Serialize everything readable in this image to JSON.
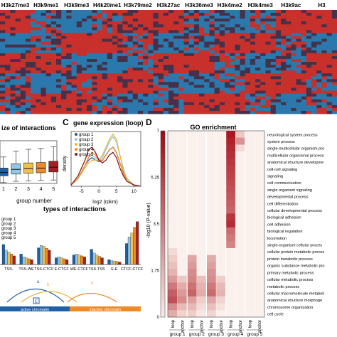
{
  "heatmap": {
    "marks": [
      "H3k27me3",
      "H3k9me1",
      "H3k9me3",
      "H4k20me1",
      "H3k79me2",
      "H3k27ac",
      "H3k36me3",
      "H3k4me2",
      "H3k4me3",
      "H3k9ac",
      "H3"
    ],
    "row_blocks": 5,
    "colors": {
      "low": "#2a7fb8",
      "high": "#d62a28",
      "mid": "#3a3552"
    }
  },
  "panel_b": {
    "title": "ize of interactions",
    "xlabel": "group number",
    "colors": [
      "#1f5fa6",
      "#8ec7e8",
      "#f2c14a",
      "#f08a24",
      "#a81e22"
    ],
    "chart_data": {
      "type": "box",
      "categories": [
        "1",
        "2",
        "3",
        "4",
        "5"
      ],
      "boxes": [
        {
          "q1": 0.18,
          "median": 0.26,
          "q3": 0.36,
          "whisker_low": 0.02,
          "whisker_high": 0.62
        },
        {
          "q1": 0.22,
          "median": 0.33,
          "q3": 0.46,
          "whisker_low": 0.05,
          "whisker_high": 0.76
        },
        {
          "q1": 0.24,
          "median": 0.35,
          "q3": 0.48,
          "whisker_low": 0.06,
          "whisker_high": 0.8
        },
        {
          "q1": 0.25,
          "median": 0.36,
          "q3": 0.49,
          "whisker_low": 0.07,
          "whisker_high": 0.82
        },
        {
          "q1": 0.27,
          "median": 0.38,
          "q3": 0.52,
          "whisker_low": 0.08,
          "whisker_high": 0.86
        }
      ]
    }
  },
  "panel_c": {
    "letter": "C",
    "title": "gene expression (loop)",
    "xlabel": "log2 (rpkm)",
    "ylabel": "density",
    "legend": [
      "group 1",
      "group 2",
      "group 3",
      "group 4",
      "group 5"
    ],
    "colors": [
      "#1f5fa6",
      "#8ec7e8",
      "#e8b63c",
      "#f08a24",
      "#8c1a1a"
    ],
    "chart_data": {
      "type": "line",
      "xticks": [
        "-5",
        "0",
        "5",
        "10"
      ],
      "xlim": [
        -8,
        12
      ],
      "ylim": [
        0,
        0.21
      ],
      "x": [
        -8,
        -6,
        -4,
        -3,
        -2,
        -1,
        0,
        1,
        2,
        3,
        4,
        5,
        6,
        7,
        8,
        10,
        12
      ],
      "series": [
        {
          "name": "group 1",
          "values": [
            0.005,
            0.03,
            0.08,
            0.1,
            0.11,
            0.1,
            0.095,
            0.1,
            0.12,
            0.14,
            0.15,
            0.13,
            0.09,
            0.05,
            0.02,
            0.005,
            0.0
          ]
        },
        {
          "name": "group 2",
          "values": [
            0.005,
            0.03,
            0.08,
            0.11,
            0.12,
            0.11,
            0.1,
            0.11,
            0.14,
            0.17,
            0.19,
            0.17,
            0.12,
            0.07,
            0.03,
            0.005,
            0.0
          ]
        },
        {
          "name": "group 3",
          "values": [
            0.005,
            0.03,
            0.07,
            0.09,
            0.1,
            0.1,
            0.1,
            0.12,
            0.15,
            0.18,
            0.2,
            0.18,
            0.12,
            0.06,
            0.03,
            0.005,
            0.0
          ]
        },
        {
          "name": "group 4",
          "values": [
            0.005,
            0.03,
            0.08,
            0.11,
            0.13,
            0.12,
            0.1,
            0.1,
            0.12,
            0.14,
            0.15,
            0.13,
            0.09,
            0.05,
            0.02,
            0.005,
            0.0
          ]
        },
        {
          "name": "group 5",
          "values": [
            0.005,
            0.04,
            0.1,
            0.14,
            0.15,
            0.13,
            0.1,
            0.09,
            0.1,
            0.12,
            0.13,
            0.11,
            0.07,
            0.04,
            0.02,
            0.005,
            0.0
          ]
        }
      ]
    }
  },
  "panel_e": {
    "title": "types of interactions",
    "legend": [
      "group 1",
      "group 2",
      "group 3",
      "group 4",
      "group 5"
    ],
    "colors": [
      "#1f5fa6",
      "#8ec7e8",
      "#f2c14a",
      "#f08a24",
      "#a81e22"
    ],
    "chart_data": {
      "type": "bar",
      "categories": [
        "TSS-TSS",
        "TSS-WE",
        "TSS-CTCF",
        "E-CTCF",
        "WE-CTCF",
        "TSS-TSS",
        "E-E",
        "CTCF-CTCF"
      ],
      "category_labels": [
        "TSS-",
        "TSS-WE",
        "TSS-CTCF",
        "E-CTCF",
        "WE-CTCF",
        "TSS-TSS",
        "E-E",
        "CTCF-CTCF"
      ],
      "series": [
        {
          "name": "group 1",
          "values": [
            0.42,
            0.22,
            0.35,
            0.14,
            0.2,
            0.32,
            0.1,
            0.44
          ]
        },
        {
          "name": "group 2",
          "values": [
            0.3,
            0.16,
            0.4,
            0.16,
            0.22,
            0.24,
            0.08,
            0.58
          ]
        },
        {
          "name": "group 3",
          "values": [
            0.26,
            0.14,
            0.38,
            0.14,
            0.2,
            0.2,
            0.07,
            0.66
          ]
        },
        {
          "name": "group 4",
          "values": [
            0.22,
            0.12,
            0.34,
            0.12,
            0.18,
            0.17,
            0.06,
            0.78
          ]
        },
        {
          "name": "group 5",
          "values": [
            0.18,
            0.1,
            0.3,
            0.1,
            0.16,
            0.14,
            0.05,
            0.9
          ]
        }
      ],
      "ylim": [
        0,
        1
      ]
    },
    "diagram": {
      "label_a": "a",
      "label_b": "b",
      "label_c": "c",
      "label_e": "E",
      "active_label": "active chromatin",
      "inactive_label": "inactive chromatin",
      "active_color": "#1f5fa6",
      "inactive_color": "#f08a24"
    }
  },
  "panel_d": {
    "letter": "D",
    "title": "GO enrichment",
    "ylabel": "-log10 (P-value)",
    "yticks": [
      "7",
      "5.25",
      "3.5",
      "1.75",
      "0"
    ],
    "columns": [
      "loop",
      "anchor",
      "loop",
      "anchor",
      "loop",
      "anchor",
      "loop",
      "anchor",
      "loop",
      "anchor"
    ],
    "groups": [
      "group 1",
      "group 2",
      "group 3",
      "group 4",
      "group 5"
    ],
    "terms": [
      "neurological system process",
      "system process",
      "single-multicellular organism pro",
      "multicellular organismal process",
      "anatomical structure developme",
      "cell-cell signaling",
      "signaling",
      "cell communication",
      "single organism signaling",
      "developmental process",
      "cell differentiation",
      "cellular developmental process",
      "biological adhesion",
      "cell adhesion",
      "biological regulation",
      "locomotion",
      "single-organism cellular proces",
      "cellular protein metabolic proces",
      "protein metabolic process",
      "organic substance metabolic pro",
      "primary metabolic process",
      "cellular metabolic process",
      "metabolic process",
      "cellular macromolecule metaboli",
      "anatomical structure morphoge",
      "chromosome organization",
      "cell cycle"
    ],
    "chart_data": {
      "type": "heatmap",
      "vmax": 7,
      "rows_top_to_bottom_values": [
        [
          0,
          0,
          0,
          0,
          0,
          0,
          6.5,
          1.2,
          0,
          0
        ],
        [
          0,
          0,
          0,
          0,
          0,
          0,
          6.2,
          2.8,
          0,
          0
        ],
        [
          0,
          0,
          0,
          0,
          0,
          0,
          6.0,
          0.6,
          0,
          0
        ],
        [
          0,
          0,
          0,
          0,
          0,
          0,
          5.8,
          0,
          0,
          0
        ],
        [
          0,
          0,
          0,
          0,
          0,
          0,
          5.6,
          0,
          0,
          0
        ],
        [
          0,
          0,
          0,
          0,
          0,
          0,
          5.4,
          0,
          0,
          0
        ],
        [
          0,
          0,
          0,
          0,
          0,
          0,
          5.2,
          0,
          0,
          0
        ],
        [
          0,
          0,
          0,
          0,
          0,
          0,
          5.0,
          0,
          0,
          0
        ],
        [
          0,
          0,
          0,
          0,
          0,
          0,
          4.8,
          0,
          0,
          0
        ],
        [
          0,
          0,
          0,
          0,
          0,
          0,
          4.6,
          0,
          0,
          0
        ],
        [
          0,
          0,
          0,
          0,
          0,
          0,
          4.4,
          0,
          0,
          0
        ],
        [
          0,
          0,
          0,
          0,
          0,
          0,
          4.2,
          0,
          0,
          0
        ],
        [
          0,
          0,
          0,
          0,
          0,
          0,
          5.6,
          0,
          0,
          0
        ],
        [
          0,
          0,
          0,
          0,
          0,
          0,
          5.9,
          0,
          0,
          0
        ],
        [
          0,
          0,
          0,
          0,
          0,
          0,
          4.0,
          0,
          0,
          0
        ],
        [
          0,
          0,
          0,
          0,
          0,
          0,
          3.6,
          0,
          0,
          0
        ],
        [
          0,
          0,
          0,
          0,
          0,
          0,
          3.2,
          0,
          0,
          0
        ],
        [
          0.6,
          0,
          0,
          0,
          0,
          0,
          0,
          0,
          0,
          0
        ],
        [
          1.0,
          0,
          2.2,
          0,
          2.0,
          0,
          0,
          0,
          0,
          0
        ],
        [
          1.4,
          0,
          2.6,
          0,
          2.4,
          0,
          0,
          0,
          0,
          0
        ],
        [
          1.8,
          0,
          3.0,
          0,
          2.8,
          0,
          0,
          0,
          0,
          0
        ],
        [
          2.6,
          1.2,
          3.2,
          1.4,
          3.0,
          1.0,
          0,
          0,
          0,
          0
        ],
        [
          3.6,
          2.0,
          3.8,
          1.8,
          3.6,
          1.6,
          0,
          0,
          0,
          0
        ],
        [
          4.4,
          2.6,
          4.2,
          2.0,
          4.0,
          1.8,
          0,
          0,
          0,
          0
        ],
        [
          4.8,
          3.0,
          2.4,
          1.0,
          2.2,
          0.8,
          0,
          0,
          0,
          0
        ],
        [
          3.0,
          1.6,
          1.6,
          0.6,
          1.4,
          0.4,
          0,
          0,
          0,
          0
        ],
        [
          2.0,
          0.8,
          1.0,
          0.2,
          0.8,
          0,
          0,
          0,
          0,
          0
        ]
      ]
    }
  }
}
